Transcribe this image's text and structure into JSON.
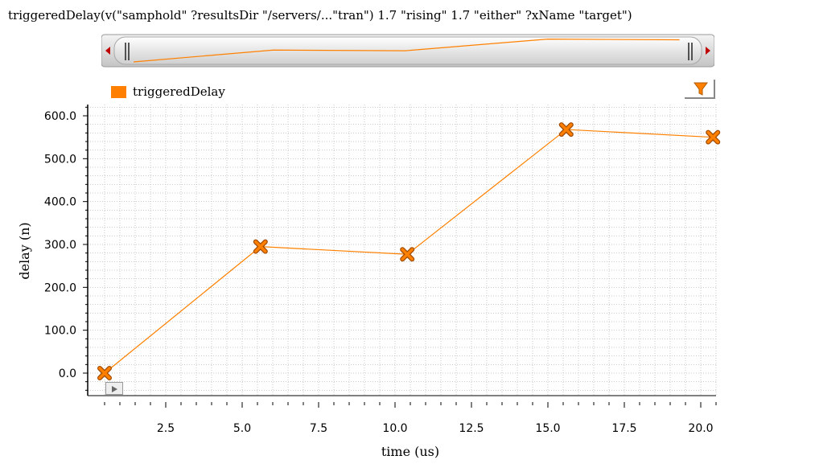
{
  "header": {
    "title": "triggeredDelay(v(\"samphold\" ?resultsDir \"/servers/...\"tran\") 1.7 \"rising\" 1.7 \"either\" ?xName \"target\")"
  },
  "legend": {
    "label": "triggeredDelay",
    "color": "#ff8000"
  },
  "icons": {
    "filter": "filter-icon",
    "play": "play-icon",
    "scroll_left": "arrow-left-icon",
    "scroll_right": "arrow-right-icon"
  },
  "chart_data": {
    "type": "line",
    "xlabel": "time (us)",
    "ylabel": "delay (n)",
    "xlim": [
      0.5,
      20.5
    ],
    "ylim": [
      -55,
      625
    ],
    "x_ticks": [
      2.5,
      5.0,
      7.5,
      10.0,
      12.5,
      15.0,
      17.5,
      20.0
    ],
    "x_tick_labels": [
      "2.5",
      "5.0",
      "7.5",
      "10.0",
      "12.5",
      "15.0",
      "17.5",
      "20.0"
    ],
    "y_ticks": [
      0,
      100,
      200,
      300,
      400,
      500,
      600
    ],
    "y_tick_labels": [
      "0.0",
      "100.0",
      "200.0",
      "300.0",
      "400.0",
      "500.0",
      "600.0"
    ],
    "grid": true,
    "legend_position": "top-left",
    "series": [
      {
        "name": "triggeredDelay",
        "color": "#ff8000",
        "marker": "x",
        "x": [
          0.5,
          5.6,
          10.4,
          15.6,
          20.4
        ],
        "y": [
          0,
          295,
          277,
          568,
          550
        ]
      }
    ]
  }
}
